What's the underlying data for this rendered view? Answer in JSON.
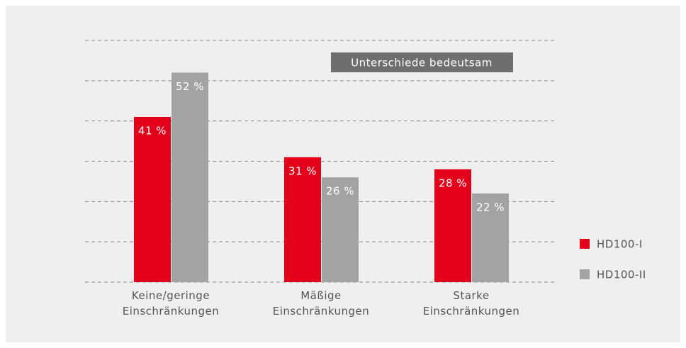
{
  "chart_data": {
    "type": "bar",
    "annotation": "Unterschiede bedeutsam",
    "categories": [
      "Keine/geringe Einschränkungen",
      "Mäßige Einschränkungen",
      "Starke Einschränkungen"
    ],
    "series": [
      {
        "name": "HD100-I",
        "color": "#e2001a",
        "values": [
          41,
          31,
          28
        ],
        "value_labels": [
          "41 %",
          "31 %",
          "28 %"
        ]
      },
      {
        "name": "HD100-II",
        "color": "#a3a3a3",
        "values": [
          52,
          26,
          22
        ],
        "value_labels": [
          "52 %",
          "26 %",
          "22 %"
        ]
      }
    ],
    "ylim": [
      0,
      60
    ],
    "yticks": [
      0,
      10,
      20,
      30,
      40,
      50,
      60
    ],
    "grid": true,
    "legend": "right"
  }
}
